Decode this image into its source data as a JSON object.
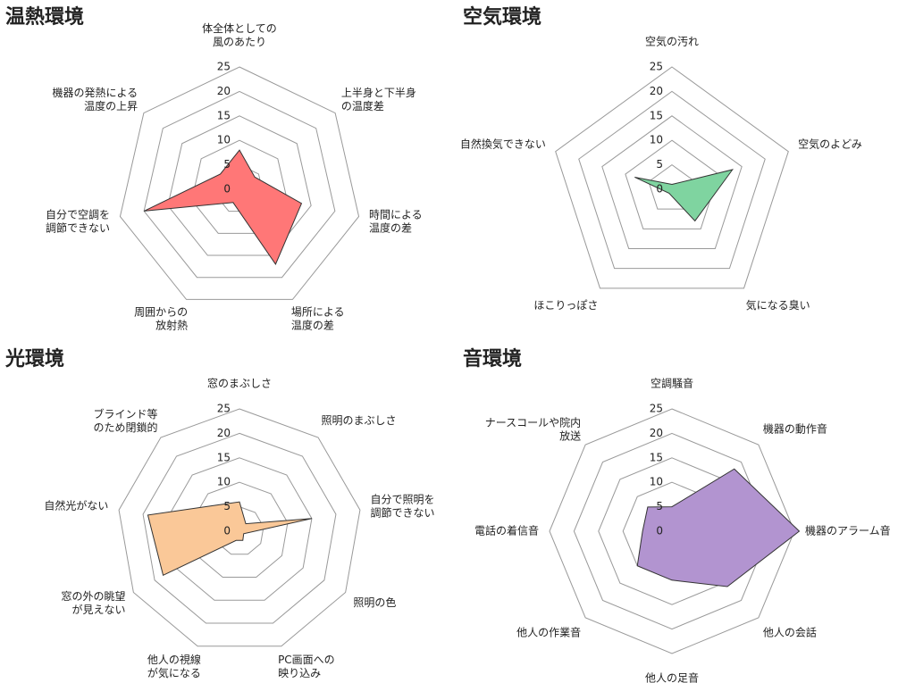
{
  "chart_data": [
    {
      "type": "radar",
      "title": "温熱環境",
      "categories": [
        "体全体としての\n風のあたり",
        "上半身と下半身\nの温度差",
        "時間による\n温度の差",
        "場所による\n温度の差",
        "周囲からの\n放射熱",
        "自分で空調を\n調節できない",
        "機器の発熱による\n温度の上昇"
      ],
      "values": [
        8,
        4,
        13,
        17,
        3,
        20,
        5
      ],
      "color": "#ff7777",
      "ylim": [
        0,
        25
      ],
      "yticks": [
        0,
        5,
        10,
        15,
        20,
        25
      ],
      "grid": true
    },
    {
      "type": "radar",
      "title": "空気環境",
      "categories": [
        "空気の汚れ",
        "空気のよどみ",
        "気になる臭い",
        "ほこりっぽさ",
        "自然換気できない"
      ],
      "values": [
        1,
        13,
        8,
        1,
        8
      ],
      "color": "#7fd4a0",
      "ylim": [
        0,
        25
      ],
      "yticks": [
        0,
        5,
        10,
        15,
        20,
        25
      ],
      "grid": true
    },
    {
      "type": "radar",
      "title": "光環境",
      "categories": [
        "窓のまぶしさ",
        "照明のまぶしさ",
        "自分で照明を\n調節できない",
        "照明の色",
        "PC画面への\n映り込み",
        "他人の視線\nが気になる",
        "窓の外の眺望\nが見えない",
        "自然光がない",
        "ブラインド等\nのため閉鎖的"
      ],
      "values": [
        6,
        2,
        15,
        1,
        2,
        2,
        18,
        19,
        7
      ],
      "color": "#fac898",
      "ylim": [
        0,
        25
      ],
      "yticks": [
        0,
        5,
        10,
        15,
        20,
        25
      ],
      "grid": true
    },
    {
      "type": "radar",
      "title": "音環境",
      "categories": [
        "空調騒音",
        "機器の動作音",
        "機器のアラーム音",
        "他人の会話",
        "他人の足音",
        "他人の作業音",
        "電話の着信音",
        "ナースコールや院内\n放送"
      ],
      "values": [
        5,
        18,
        26,
        16,
        10,
        10,
        6,
        7
      ],
      "color": "#b294d0",
      "ylim": [
        0,
        25
      ],
      "yticks": [
        0,
        5,
        10,
        15,
        20,
        25
      ],
      "grid": true
    }
  ]
}
